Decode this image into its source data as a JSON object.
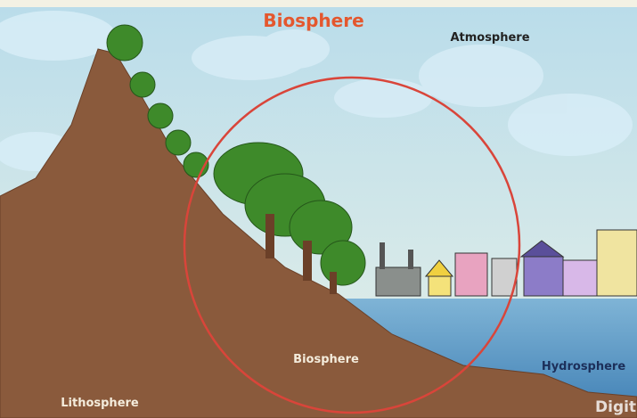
{
  "title": "Biosphere",
  "labels": {
    "atmosphere": "Atmosphere",
    "biosphere": "Biosphere",
    "hydrosphere": "Hydrosphere",
    "lithosphere": "Lithosphere"
  },
  "watermark": "Digit"
}
